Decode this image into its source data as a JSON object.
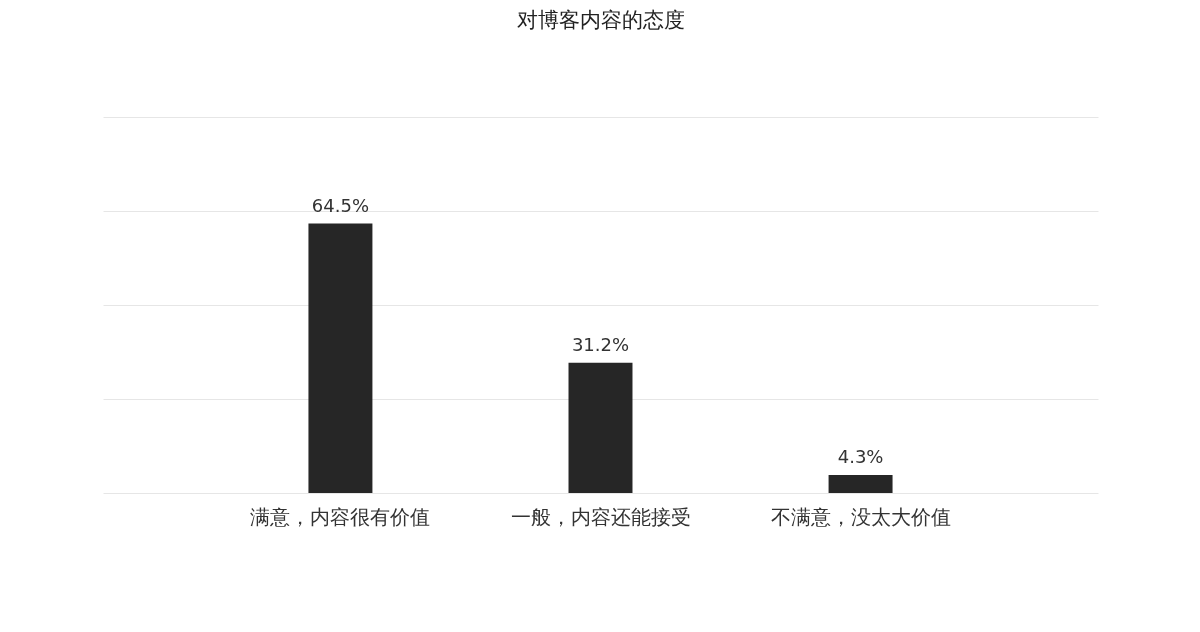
{
  "chart_data": {
    "type": "bar",
    "title": "对博客内容的态度",
    "categories": [
      "满意，内容很有价值",
      "一般，内容还能接受",
      "不满意，没太大价值"
    ],
    "values": [
      64.5,
      31.2,
      4.3
    ],
    "value_labels": [
      "64.5%",
      "31.2%",
      "4.3%"
    ],
    "color": "#262626",
    "ylim": [
      0,
      90
    ],
    "yticks": [
      {
        "value": 0,
        "label": null
      },
      {
        "value": 22.5,
        "label": null
      },
      {
        "value": 45,
        "label": null
      },
      {
        "value": 67.5,
        "label": null
      },
      {
        "value": 90,
        "label": null
      }
    ],
    "tick_labels": "x",
    "grid": "y"
  }
}
